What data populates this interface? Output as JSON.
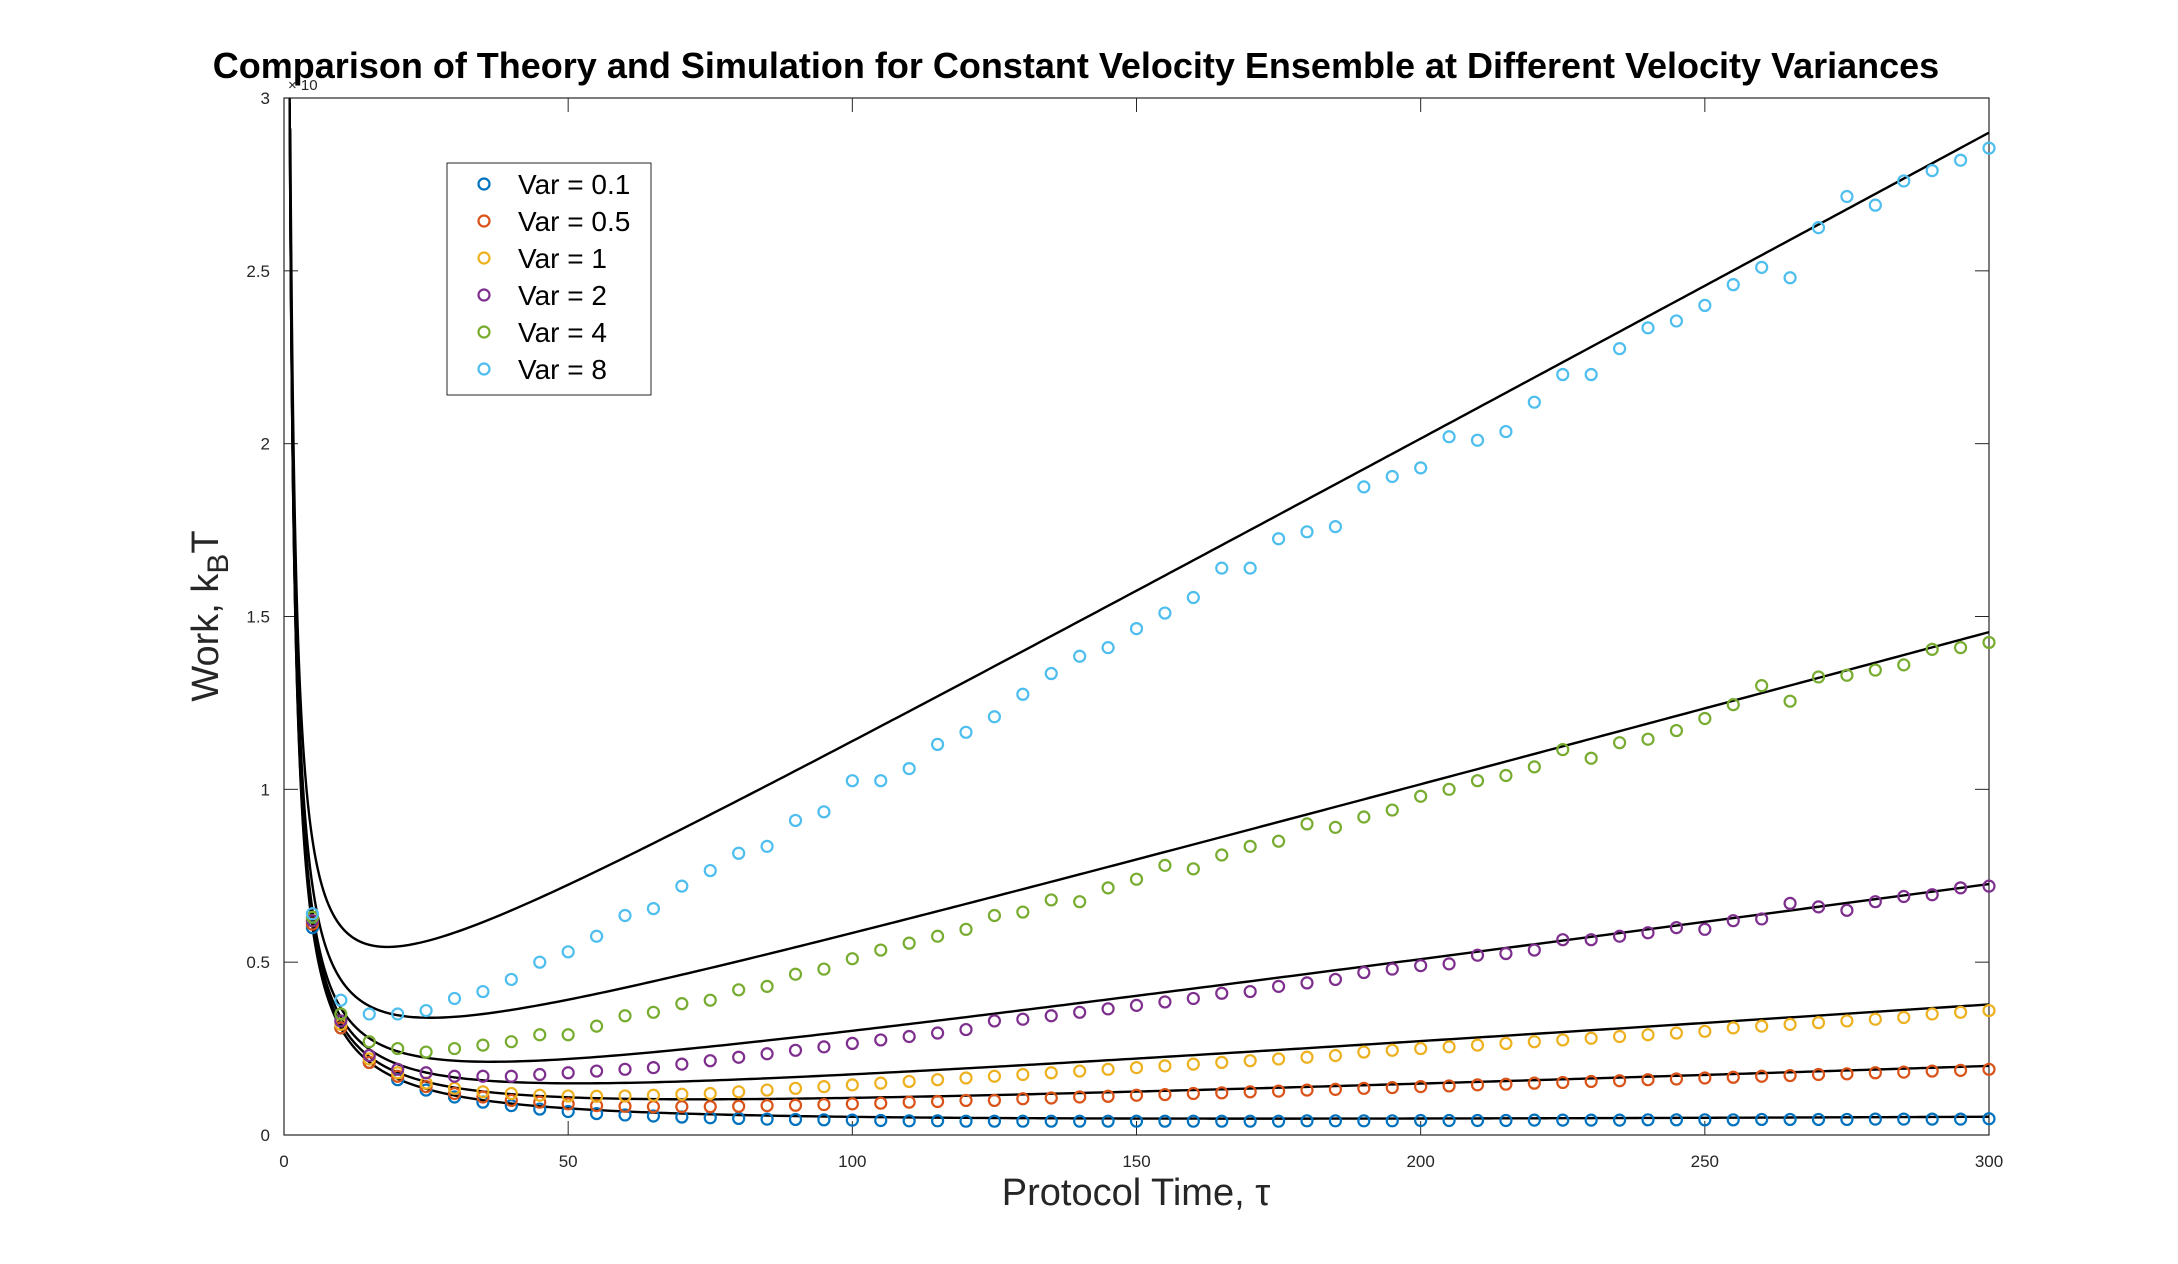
{
  "chart_data": {
    "type": "scatter",
    "title": "Comparison of Theory and Simulation for Constant Velocity Ensemble at Different Velocity Variances",
    "xlabel": "Protocol Time, τ",
    "ylabel_main": "Work, k",
    "ylabel_sub": "B",
    "ylabel_tail": "T",
    "y_exponent_label": "× 10",
    "xlim": [
      0,
      300
    ],
    "ylim": [
      0,
      3
    ],
    "x_ticks": [
      "0",
      "50",
      "100",
      "150",
      "200",
      "250",
      "300"
    ],
    "y_ticks": [
      "0",
      "0.5",
      "1",
      "1.5",
      "2",
      "2.5",
      "3"
    ],
    "legend_position": "top-left",
    "grid": false,
    "x": [
      5,
      10,
      15,
      20,
      25,
      30,
      35,
      40,
      45,
      50,
      55,
      60,
      65,
      70,
      75,
      80,
      85,
      90,
      95,
      100,
      105,
      110,
      115,
      120,
      125,
      130,
      135,
      140,
      145,
      150,
      155,
      160,
      165,
      170,
      175,
      180,
      185,
      190,
      195,
      200,
      205,
      210,
      215,
      220,
      225,
      230,
      235,
      240,
      245,
      250,
      255,
      260,
      265,
      270,
      275,
      280,
      285,
      290,
      295,
      300
    ],
    "series": [
      {
        "name": "Var = 0.1",
        "color": "#0072BD",
        "theory": {
          "a": 2.95,
          "b": 0.0001,
          "c": 0.013
        },
        "values": [
          0.6,
          0.31,
          0.21,
          0.16,
          0.13,
          0.11,
          0.095,
          0.085,
          0.075,
          0.068,
          0.062,
          0.058,
          0.055,
          0.052,
          0.05,
          0.048,
          0.046,
          0.045,
          0.044,
          0.043,
          0.042,
          0.041,
          0.041,
          0.04,
          0.04,
          0.04,
          0.04,
          0.04,
          0.04,
          0.04,
          0.04,
          0.04,
          0.04,
          0.04,
          0.04,
          0.041,
          0.041,
          0.041,
          0.041,
          0.042,
          0.042,
          0.042,
          0.042,
          0.043,
          0.043,
          0.043,
          0.043,
          0.044,
          0.044,
          0.044,
          0.044,
          0.045,
          0.045,
          0.045,
          0.045,
          0.046,
          0.046,
          0.046,
          0.046,
          0.047
        ]
      },
      {
        "name": "Var = 0.5",
        "color": "#D95319",
        "theory": {
          "a": 2.95,
          "b": 0.00056,
          "c": 0.022
        },
        "values": [
          0.61,
          0.31,
          0.21,
          0.17,
          0.14,
          0.12,
          0.11,
          0.1,
          0.095,
          0.09,
          0.085,
          0.083,
          0.082,
          0.082,
          0.082,
          0.083,
          0.085,
          0.086,
          0.088,
          0.09,
          0.092,
          0.095,
          0.097,
          0.1,
          0.1,
          0.105,
          0.107,
          0.11,
          0.112,
          0.115,
          0.117,
          0.12,
          0.122,
          0.125,
          0.127,
          0.13,
          0.132,
          0.135,
          0.137,
          0.14,
          0.142,
          0.145,
          0.147,
          0.15,
          0.152,
          0.155,
          0.157,
          0.16,
          0.162,
          0.165,
          0.167,
          0.17,
          0.172,
          0.175,
          0.177,
          0.18,
          0.182,
          0.185,
          0.187,
          0.19
        ]
      },
      {
        "name": "Var = 1",
        "color": "#EDB120",
        "theory": {
          "a": 2.95,
          "b": 0.00111,
          "c": 0.035
        },
        "values": [
          0.62,
          0.32,
          0.22,
          0.18,
          0.15,
          0.135,
          0.125,
          0.12,
          0.115,
          0.113,
          0.112,
          0.113,
          0.115,
          0.118,
          0.12,
          0.125,
          0.13,
          0.135,
          0.14,
          0.145,
          0.15,
          0.155,
          0.16,
          0.165,
          0.17,
          0.175,
          0.18,
          0.185,
          0.19,
          0.195,
          0.2,
          0.205,
          0.21,
          0.215,
          0.22,
          0.225,
          0.23,
          0.24,
          0.245,
          0.25,
          0.255,
          0.26,
          0.265,
          0.27,
          0.275,
          0.28,
          0.285,
          0.29,
          0.295,
          0.3,
          0.31,
          0.315,
          0.32,
          0.325,
          0.33,
          0.335,
          0.34,
          0.35,
          0.355,
          0.36
        ]
      },
      {
        "name": "Var = 2",
        "color": "#7E2F8E",
        "theory": {
          "a": 2.95,
          "b": 0.00222,
          "c": 0.05
        },
        "values": [
          0.62,
          0.33,
          0.23,
          0.19,
          0.18,
          0.17,
          0.17,
          0.17,
          0.175,
          0.18,
          0.185,
          0.19,
          0.195,
          0.205,
          0.215,
          0.225,
          0.235,
          0.245,
          0.255,
          0.265,
          0.275,
          0.285,
          0.295,
          0.305,
          0.33,
          0.335,
          0.345,
          0.355,
          0.365,
          0.375,
          0.385,
          0.395,
          0.41,
          0.415,
          0.43,
          0.44,
          0.45,
          0.47,
          0.48,
          0.49,
          0.495,
          0.52,
          0.525,
          0.535,
          0.565,
          0.565,
          0.575,
          0.585,
          0.6,
          0.595,
          0.62,
          0.625,
          0.67,
          0.66,
          0.65,
          0.675,
          0.69,
          0.695,
          0.715,
          0.72
        ]
      },
      {
        "name": "Var = 4",
        "color": "#77AC30",
        "theory": {
          "a": 2.95,
          "b": 0.00445,
          "c": 0.11
        },
        "values": [
          0.63,
          0.35,
          0.27,
          0.25,
          0.24,
          0.25,
          0.26,
          0.27,
          0.29,
          0.29,
          0.315,
          0.345,
          0.355,
          0.38,
          0.39,
          0.42,
          0.43,
          0.465,
          0.48,
          0.51,
          0.535,
          0.555,
          0.575,
          0.595,
          0.635,
          0.645,
          0.68,
          0.675,
          0.715,
          0.74,
          0.78,
          0.77,
          0.81,
          0.835,
          0.85,
          0.9,
          0.89,
          0.92,
          0.94,
          0.98,
          1.0,
          1.025,
          1.04,
          1.065,
          1.115,
          1.09,
          1.135,
          1.145,
          1.17,
          1.205,
          1.245,
          1.3,
          1.255,
          1.325,
          1.33,
          1.345,
          1.36,
          1.405,
          1.41,
          1.425
        ]
      },
      {
        "name": "Var = 8",
        "color": "#4DBEEE",
        "theory": {
          "a": 2.95,
          "b": 0.0089,
          "c": 0.22
        },
        "values": [
          0.64,
          0.39,
          0.35,
          0.35,
          0.36,
          0.395,
          0.415,
          0.45,
          0.5,
          0.53,
          0.575,
          0.635,
          0.655,
          0.72,
          0.765,
          0.815,
          0.835,
          0.91,
          0.935,
          1.025,
          1.025,
          1.06,
          1.13,
          1.165,
          1.21,
          1.275,
          1.335,
          1.385,
          1.41,
          1.465,
          1.51,
          1.555,
          1.64,
          1.64,
          1.725,
          1.745,
          1.76,
          1.875,
          1.905,
          1.93,
          2.02,
          2.01,
          2.035,
          2.12,
          2.2,
          2.2,
          2.275,
          2.335,
          2.355,
          2.4,
          2.46,
          2.51,
          2.48,
          2.625,
          2.715,
          2.69,
          2.76,
          2.79,
          2.82,
          2.855
        ]
      }
    ]
  }
}
